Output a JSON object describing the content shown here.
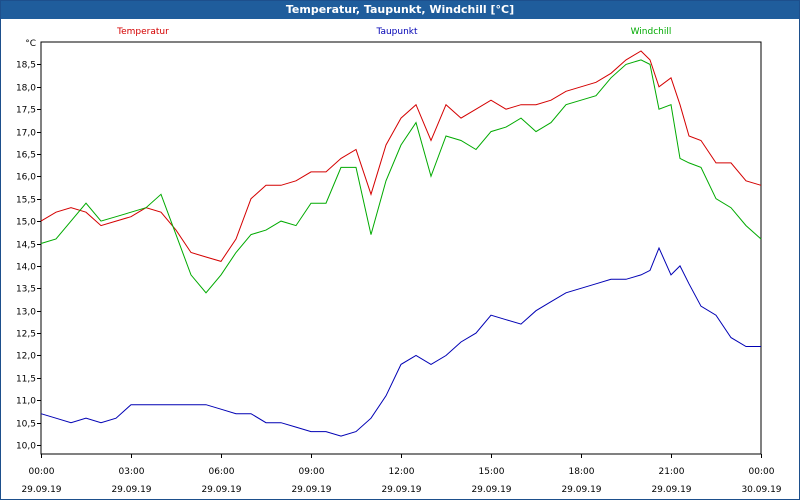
{
  "window": {
    "title": "Temperatur, Taupunkt, Windchill [°C]"
  },
  "chart_data": {
    "type": "line",
    "title": "Temperatur, Taupunkt, Windchill [°C]",
    "ylabel": "°C",
    "xlabel": "",
    "grid": true,
    "ylim": [
      9.8,
      19.0
    ],
    "xlim": [
      0,
      24
    ],
    "y_ticks": [
      "10,0",
      "10,5",
      "11,0",
      "11,5",
      "12,0",
      "12,5",
      "13,0",
      "13,5",
      "14,0",
      "14,5",
      "15,0",
      "15,5",
      "16,0",
      "16,5",
      "17,0",
      "17,5",
      "18,0",
      "18,5"
    ],
    "y_tick_values": [
      10.0,
      10.5,
      11.0,
      11.5,
      12.0,
      12.5,
      13.0,
      13.5,
      14.0,
      14.5,
      15.0,
      15.5,
      16.0,
      16.5,
      17.0,
      17.5,
      18.0,
      18.5
    ],
    "x_ticks": [
      {
        "time": "00:00",
        "date": "29.09.19",
        "hour": 0
      },
      {
        "time": "03:00",
        "date": "29.09.19",
        "hour": 3
      },
      {
        "time": "06:00",
        "date": "29.09.19",
        "hour": 6
      },
      {
        "time": "09:00",
        "date": "29.09.19",
        "hour": 9
      },
      {
        "time": "12:00",
        "date": "29.09.19",
        "hour": 12
      },
      {
        "time": "15:00",
        "date": "29.09.19",
        "hour": 15
      },
      {
        "time": "18:00",
        "date": "29.09.19",
        "hour": 18
      },
      {
        "time": "21:00",
        "date": "29.09.19",
        "hour": 21
      },
      {
        "time": "00:00",
        "date": "30.09.19",
        "hour": 24
      }
    ],
    "series": [
      {
        "name": "Temperatur",
        "color": "#d40000",
        "x": [
          0,
          0.5,
          1,
          1.5,
          2,
          2.5,
          3,
          3.5,
          4,
          4.5,
          5,
          5.5,
          6,
          6.5,
          7,
          7.5,
          8,
          8.5,
          9,
          9.5,
          10,
          10.5,
          11,
          11.5,
          12,
          12.5,
          13,
          13.5,
          14,
          14.5,
          15,
          15.5,
          16,
          16.5,
          17,
          17.5,
          18,
          18.5,
          19,
          19.5,
          20,
          20.3,
          20.6,
          21,
          21.3,
          21.6,
          22,
          22.5,
          23,
          23.5,
          24
        ],
        "values": [
          15.0,
          15.2,
          15.3,
          15.2,
          14.9,
          15.0,
          15.1,
          15.3,
          15.2,
          14.8,
          14.3,
          14.2,
          14.1,
          14.6,
          15.5,
          15.8,
          15.8,
          15.9,
          16.1,
          16.1,
          16.4,
          16.6,
          15.6,
          16.7,
          17.3,
          17.6,
          16.8,
          17.6,
          17.3,
          17.5,
          17.7,
          17.5,
          17.6,
          17.6,
          17.7,
          17.9,
          18.0,
          18.1,
          18.3,
          18.6,
          18.8,
          18.6,
          18.0,
          18.2,
          17.6,
          16.9,
          16.8,
          16.3,
          16.3,
          15.9,
          15.8
        ]
      },
      {
        "name": "Taupunkt",
        "color": "#0000b4",
        "x": [
          0,
          0.5,
          1,
          1.5,
          2,
          2.5,
          3,
          3.5,
          4,
          4.5,
          5,
          5.5,
          6,
          6.5,
          7,
          7.5,
          8,
          8.5,
          9,
          9.5,
          10,
          10.5,
          11,
          11.5,
          12,
          12.5,
          13,
          13.5,
          14,
          14.5,
          15,
          15.5,
          16,
          16.5,
          17,
          17.5,
          18,
          18.5,
          19,
          19.5,
          20,
          20.3,
          20.6,
          21,
          21.3,
          21.6,
          22,
          22.5,
          23,
          23.5,
          24
        ],
        "values": [
          10.7,
          10.6,
          10.5,
          10.6,
          10.5,
          10.6,
          10.9,
          10.9,
          10.9,
          10.9,
          10.9,
          10.9,
          10.8,
          10.7,
          10.7,
          10.5,
          10.5,
          10.4,
          10.3,
          10.3,
          10.2,
          10.3,
          10.6,
          11.1,
          11.8,
          12.0,
          11.8,
          12.0,
          12.3,
          12.5,
          12.9,
          12.8,
          12.7,
          13.0,
          13.2,
          13.4,
          13.5,
          13.6,
          13.7,
          13.7,
          13.8,
          13.9,
          14.4,
          13.8,
          14.0,
          13.6,
          13.1,
          12.9,
          12.4,
          12.2,
          12.2
        ]
      },
      {
        "name": "Windchill",
        "color": "#00aa00",
        "x": [
          0,
          0.5,
          1,
          1.5,
          2,
          2.5,
          3,
          3.5,
          4,
          4.5,
          5,
          5.5,
          6,
          6.5,
          7,
          7.5,
          8,
          8.5,
          9,
          9.5,
          10,
          10.5,
          11,
          11.5,
          12,
          12.5,
          13,
          13.5,
          14,
          14.5,
          15,
          15.5,
          16,
          16.5,
          17,
          17.5,
          18,
          18.5,
          19,
          19.5,
          20,
          20.3,
          20.6,
          21,
          21.3,
          21.6,
          22,
          22.5,
          23,
          23.5,
          24
        ],
        "values": [
          14.5,
          14.6,
          15.0,
          15.4,
          15.0,
          15.1,
          15.2,
          15.3,
          15.6,
          14.7,
          13.8,
          13.4,
          13.8,
          14.3,
          14.7,
          14.8,
          15.0,
          14.9,
          15.4,
          15.4,
          16.2,
          16.2,
          14.7,
          15.9,
          16.7,
          17.2,
          16.0,
          16.9,
          16.8,
          16.6,
          17.0,
          17.1,
          17.3,
          17.0,
          17.2,
          17.6,
          17.7,
          17.8,
          18.2,
          18.5,
          18.6,
          18.5,
          17.5,
          17.6,
          16.4,
          16.3,
          16.2,
          15.5,
          15.3,
          14.9,
          14.6
        ]
      }
    ]
  }
}
